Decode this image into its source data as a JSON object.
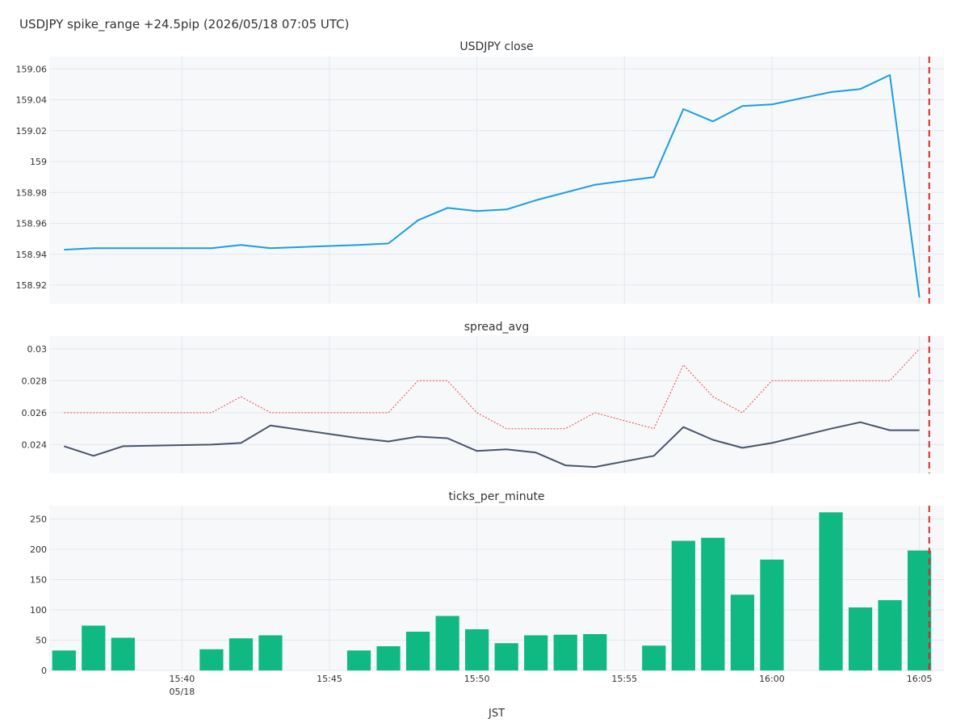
{
  "colors": {
    "background": "#ffffff",
    "plot_bg": "#f7f8fa",
    "grid": "#e3e7ee",
    "close_line": "#1a9ee0",
    "spread_line": "#475569",
    "spread_max_line": "#ef4444",
    "bars": "#10b981",
    "marker": "#dc2626"
  },
  "chart_data": {
    "title": "USDJPY spike_range +24.5pip (2026/05/18 07:05 UTC)",
    "xlabel": "JST",
    "x_ticks": [
      {
        "time": "15:40",
        "label": "15:40",
        "sublabel": "05/18"
      },
      {
        "time": "15:45",
        "label": "15:45"
      },
      {
        "time": "15:50",
        "label": "15:50"
      },
      {
        "time": "15:55",
        "label": "15:55"
      },
      {
        "time": "16:00",
        "label": "16:00"
      },
      {
        "time": "16:05",
        "label": "16:05"
      }
    ],
    "x_range": [
      "15:35:30",
      "16:05:50"
    ],
    "event_marker": {
      "time": "16:05:20",
      "style": "dashed"
    },
    "grid": true,
    "panels": [
      {
        "type": "line",
        "subtitle": "USDJPY close",
        "ylim": [
          158.908,
          159.068
        ],
        "y_ticks": [
          {
            "v": 158.92,
            "label": "158.92"
          },
          {
            "v": 158.94,
            "label": "158.94"
          },
          {
            "v": 158.96,
            "label": "158.96"
          },
          {
            "v": 158.98,
            "label": "158.98"
          },
          {
            "v": 159.0,
            "label": "159"
          },
          {
            "v": 159.02,
            "label": "159.02"
          },
          {
            "v": 159.04,
            "label": "159.04"
          },
          {
            "v": 159.06,
            "label": "159.06"
          }
        ],
        "series": [
          {
            "style": "solid",
            "color_key": "close_line",
            "x": [
              "15:36",
              "15:37",
              "15:38",
              "15:41",
              "15:42",
              "15:43",
              "15:46",
              "15:47",
              "15:48",
              "15:49",
              "15:50",
              "15:51",
              "15:52",
              "15:54",
              "15:56",
              "15:57",
              "15:58",
              "15:59",
              "16:00",
              "16:02",
              "16:03",
              "16:04",
              "16:05"
            ],
            "y": [
              158.943,
              158.944,
              158.944,
              158.944,
              158.946,
              158.944,
              158.946,
              158.947,
              158.962,
              158.97,
              158.968,
              158.969,
              158.975,
              158.985,
              158.99,
              159.034,
              159.026,
              159.036,
              159.037,
              159.045,
              159.047,
              159.056,
              158.912
            ]
          }
        ]
      },
      {
        "type": "line",
        "subtitle": "spread_avg",
        "ylim": [
          0.0222,
          0.0308
        ],
        "y_ticks": [
          {
            "v": 0.024,
            "label": "0.024"
          },
          {
            "v": 0.026,
            "label": "0.026"
          },
          {
            "v": 0.028,
            "label": "0.028"
          },
          {
            "v": 0.03,
            "label": "0.03"
          }
        ],
        "series": [
          {
            "style": "dotted",
            "color_key": "spread_max_line",
            "x": [
              "15:36",
              "15:41",
              "15:42",
              "15:43",
              "15:47",
              "15:48",
              "15:49",
              "15:50",
              "15:51",
              "15:53",
              "15:54",
              "15:56",
              "15:57",
              "15:58",
              "15:59",
              "16:00",
              "16:04",
              "16:05"
            ],
            "y": [
              0.026,
              0.026,
              0.027,
              0.026,
              0.026,
              0.028,
              0.028,
              0.026,
              0.025,
              0.025,
              0.026,
              0.025,
              0.029,
              0.027,
              0.026,
              0.028,
              0.028,
              0.03
            ]
          },
          {
            "style": "solid",
            "color_key": "spread_line",
            "x": [
              "15:36",
              "15:37",
              "15:38",
              "15:41",
              "15:42",
              "15:43",
              "15:46",
              "15:47",
              "15:48",
              "15:49",
              "15:50",
              "15:51",
              "15:52",
              "15:53",
              "15:54",
              "15:56",
              "15:57",
              "15:58",
              "15:59",
              "16:00",
              "16:02",
              "16:03",
              "16:04",
              "16:05"
            ],
            "y": [
              0.0239,
              0.0233,
              0.0239,
              0.024,
              0.0241,
              0.0252,
              0.0244,
              0.0242,
              0.0245,
              0.0244,
              0.0236,
              0.0237,
              0.0235,
              0.0227,
              0.0226,
              0.0233,
              0.0251,
              0.0243,
              0.0238,
              0.0241,
              0.025,
              0.0254,
              0.0249,
              0.0249
            ]
          }
        ]
      },
      {
        "type": "bar",
        "subtitle": "ticks_per_minute",
        "ylim": [
          0,
          272
        ],
        "y_ticks": [
          {
            "v": 0,
            "label": "0"
          },
          {
            "v": 50,
            "label": "50"
          },
          {
            "v": 100,
            "label": "100"
          },
          {
            "v": 150,
            "label": "150"
          },
          {
            "v": 200,
            "label": "200"
          },
          {
            "v": 250,
            "label": "250"
          }
        ],
        "series": [
          {
            "color_key": "bars",
            "x": [
              "15:36",
              "15:37",
              "15:38",
              "15:41",
              "15:42",
              "15:43",
              "15:46",
              "15:47",
              "15:48",
              "15:49",
              "15:50",
              "15:51",
              "15:52",
              "15:53",
              "15:54",
              "15:56",
              "15:57",
              "15:58",
              "15:59",
              "16:00",
              "16:02",
              "16:03",
              "16:04",
              "16:05"
            ],
            "y": [
              33,
              74,
              54,
              35,
              53,
              58,
              33,
              40,
              64,
              90,
              68,
              45,
              58,
              59,
              60,
              41,
              214,
              219,
              125,
              183,
              261,
              104,
              116,
              198
            ]
          }
        ]
      }
    ]
  }
}
